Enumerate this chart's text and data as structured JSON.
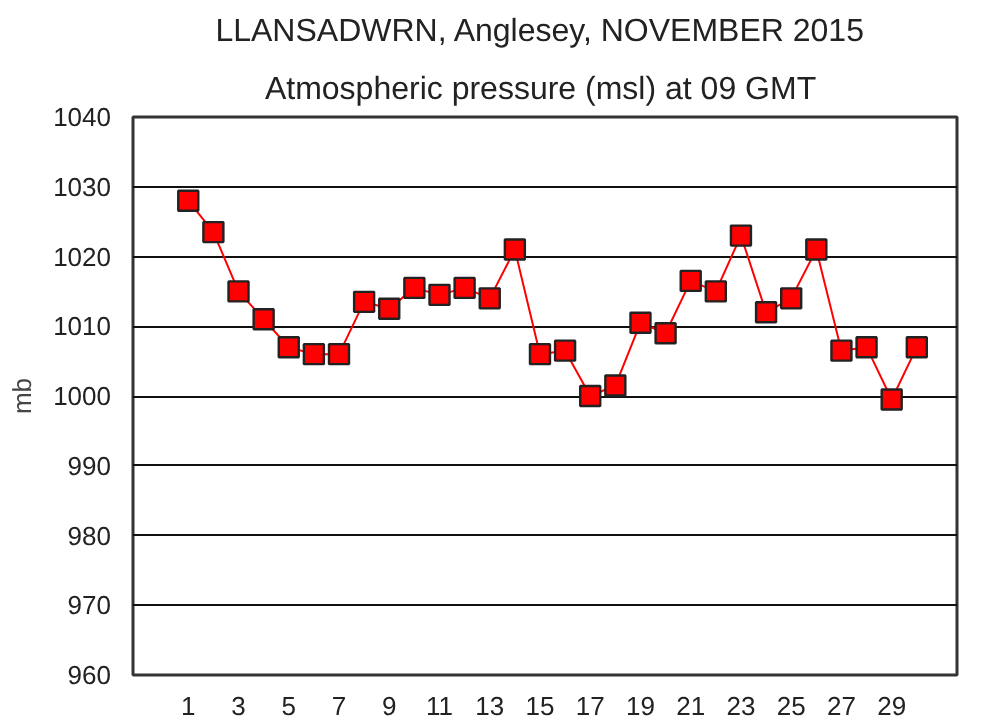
{
  "chart_data": {
    "type": "line",
    "title": "LLANSADWRN, Anglesey,  NOVEMBER 2015",
    "subtitle": "Atmospheric pressure  (msl) at 09 GMT",
    "ylabel": "mb",
    "x": [
      1,
      2,
      3,
      4,
      5,
      6,
      7,
      8,
      9,
      10,
      11,
      12,
      13,
      14,
      15,
      16,
      17,
      18,
      19,
      20,
      21,
      22,
      23,
      24,
      25,
      26,
      27,
      28,
      29,
      30
    ],
    "series": [
      {
        "color": "#ff0000",
        "values": [
          1028,
          1023.5,
          1015,
          1011,
          1007,
          1006,
          1006,
          1013.5,
          1012.5,
          1015.5,
          1014.5,
          1015.5,
          1014,
          1021,
          1006,
          1006.5,
          1000,
          1001.5,
          1010.5,
          1009,
          1016.5,
          1015,
          1023,
          1012,
          1014,
          1021,
          1006.5,
          1007,
          999.5,
          1007
        ]
      }
    ],
    "xlim": [
      -1.2,
      31.6
    ],
    "xticks": [
      1,
      3,
      5,
      7,
      9,
      11,
      13,
      15,
      17,
      19,
      21,
      23,
      25,
      27,
      29
    ],
    "ylim": [
      960,
      1040
    ],
    "yticks": [
      960,
      970,
      980,
      990,
      1000,
      1010,
      1020,
      1030,
      1040
    ],
    "grid": "y",
    "marker": "square",
    "line_style": "solid"
  }
}
